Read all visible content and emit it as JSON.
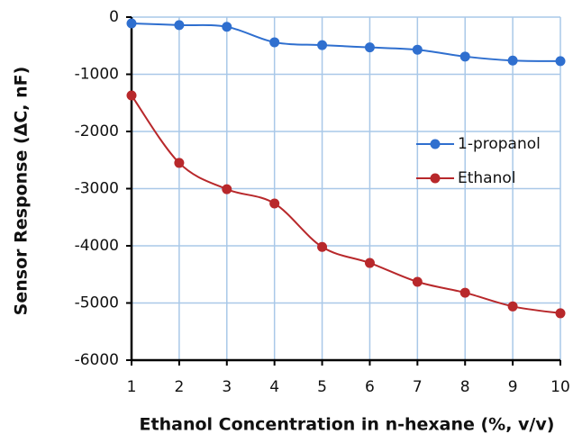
{
  "chart_data": {
    "type": "line",
    "x_label": "Ethanol Concentration in n-hexane (%, v/v)",
    "y_label": "Sensor Response (ΔC, nF)",
    "x": [
      1,
      2,
      3,
      4,
      5,
      6,
      7,
      8,
      9,
      10
    ],
    "series": [
      {
        "name": "1-propanol",
        "color": "#2f6fcf",
        "values": [
          -110,
          -140,
          -170,
          -440,
          -490,
          -530,
          -570,
          -690,
          -760,
          -770
        ]
      },
      {
        "name": "Ethanol",
        "color": "#b8282b",
        "values": [
          -1370,
          -2550,
          -3010,
          -3260,
          -4020,
          -4300,
          -4630,
          -4820,
          -5060,
          -5180
        ]
      }
    ],
    "xlim": [
      1,
      10
    ],
    "xticks": [
      1,
      2,
      3,
      4,
      5,
      6,
      7,
      8,
      9,
      10
    ],
    "ylim": [
      -6000,
      0
    ],
    "yticks": [
      0,
      -1000,
      -2000,
      -3000,
      -4000,
      -5000,
      -6000
    ],
    "grid": true,
    "legend": "right"
  }
}
